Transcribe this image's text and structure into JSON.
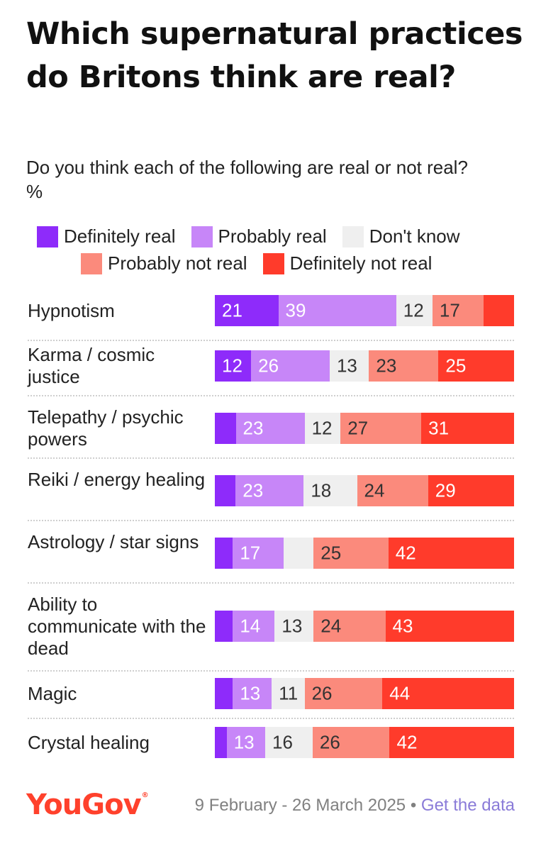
{
  "title": "Which supernatural practices do Britons think are real?",
  "subtitle": "Do you think each of the following are real or not real?",
  "unit": "%",
  "footer": {
    "logo": "YouGov",
    "logo_mark": "®",
    "date_range": "9 February - 26 March 2025",
    "separator": "•",
    "link": "Get the data"
  },
  "colors": {
    "definitely_real": "#8e2bfa",
    "probably_real": "#c786f8",
    "dont_know": "#efefef",
    "probably_not_real": "#fb8a7c",
    "definitely_not_real": "#ff3b2b"
  },
  "chart_data": {
    "type": "bar",
    "orientation": "horizontal-stacked",
    "legend": [
      {
        "name": "Definitely real",
        "color": "#8e2bfa"
      },
      {
        "name": "Probably real",
        "color": "#c786f8"
      },
      {
        "name": "Don't know",
        "color": "#efefef"
      },
      {
        "name": "Probably not real",
        "color": "#fb8a7c"
      },
      {
        "name": "Definitely not real",
        "color": "#ff3b2b"
      }
    ],
    "legend_position": "top",
    "categories": [
      "Hypnotism",
      "Karma / cosmic justice",
      "Telepathy / psychic powers",
      "Reiki / energy healing",
      "Astrology / star signs",
      "Ability to communicate with the dead",
      "Magic",
      "Crystal healing"
    ],
    "rows": [
      {
        "label": "Hypnotism",
        "values": [
          21,
          39,
          12,
          17,
          10
        ],
        "labels": [
          "21",
          "39",
          "12",
          "17",
          ""
        ]
      },
      {
        "label": "Karma / cosmic justice",
        "values": [
          12,
          26,
          13,
          23,
          25
        ],
        "labels": [
          "12",
          "26",
          "13",
          "23",
          "25"
        ]
      },
      {
        "label": "Telepathy / psychic powers",
        "values": [
          7,
          23,
          12,
          27,
          31
        ],
        "labels": [
          "",
          "23",
          "12",
          "27",
          "31"
        ]
      },
      {
        "label": "Reiki / energy healing",
        "values": [
          7,
          23,
          18,
          24,
          29
        ],
        "labels": [
          "",
          "23",
          "18",
          "24",
          "29"
        ]
      },
      {
        "label": "Astrology / star signs",
        "values": [
          6,
          17,
          10,
          25,
          42
        ],
        "labels": [
          "",
          "17",
          "",
          "25",
          "42"
        ]
      },
      {
        "label": "Ability to communicate with the dead",
        "values": [
          6,
          14,
          13,
          24,
          43
        ],
        "labels": [
          "",
          "14",
          "13",
          "24",
          "43"
        ]
      },
      {
        "label": "Magic",
        "values": [
          6,
          13,
          11,
          26,
          44
        ],
        "labels": [
          "",
          "13",
          "11",
          "26",
          "44"
        ]
      },
      {
        "label": "Crystal healing",
        "values": [
          4,
          13,
          16,
          26,
          42
        ],
        "labels": [
          "",
          "13",
          "16",
          "26",
          "42"
        ]
      }
    ]
  }
}
